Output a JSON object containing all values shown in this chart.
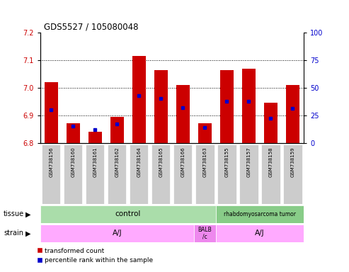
{
  "title": "GDS5527 / 105080048",
  "samples": [
    "GSM738156",
    "GSM738160",
    "GSM738161",
    "GSM738162",
    "GSM738164",
    "GSM738165",
    "GSM738166",
    "GSM738163",
    "GSM738155",
    "GSM738157",
    "GSM738158",
    "GSM738159"
  ],
  "red_values": [
    7.02,
    6.87,
    6.84,
    6.895,
    7.115,
    7.065,
    7.01,
    6.87,
    7.065,
    7.07,
    6.945,
    7.01
  ],
  "blue_values_pct": [
    30,
    15,
    12,
    17,
    43,
    40,
    32,
    14,
    38,
    38,
    22,
    31
  ],
  "y_min": 6.8,
  "y_max": 7.2,
  "y_ticks": [
    6.8,
    6.9,
    7.0,
    7.1,
    7.2
  ],
  "y2_ticks": [
    0,
    25,
    50,
    75,
    100
  ],
  "bar_color": "#cc0000",
  "dot_color": "#0000cc",
  "bar_width": 0.6,
  "ctrl_color": "#aaddaa",
  "tumor_color": "#88cc88",
  "strain_color": "#ffaaff",
  "balb_color": "#ee88ee",
  "legend_red": "transformed count",
  "legend_blue": "percentile rank within the sample",
  "left_color": "#cc0000",
  "right_color": "#0000cc",
  "tick_bg": "#cccccc"
}
